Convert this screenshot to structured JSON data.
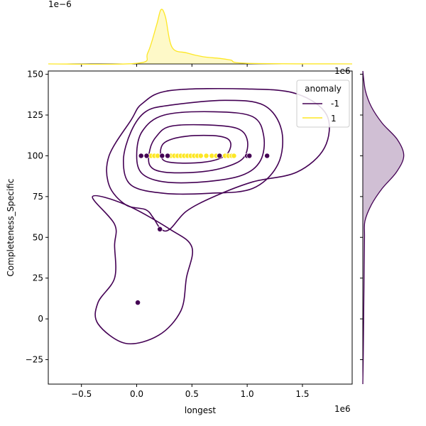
{
  "chart_data": {
    "type": "scatter",
    "subtype": "jointplot-kde",
    "xlabel": "longest",
    "ylabel": "Completeness_Specific",
    "x_offset_text": "1e6",
    "y_offset_text": "1e6",
    "top_offset_text": "1e−6",
    "xlim": [
      -0.8,
      1.95
    ],
    "ylim": [
      -40,
      152
    ],
    "xticks": [
      -0.5,
      0.0,
      0.5,
      1.0,
      1.5
    ],
    "xtick_labels": [
      "−0.5",
      "0.0",
      "0.5",
      "1.0",
      "1.5"
    ],
    "yticks": [
      -25,
      0,
      25,
      50,
      75,
      100,
      125,
      150
    ],
    "ytick_labels": [
      "−25",
      "0",
      "25",
      "50",
      "75",
      "100",
      "125",
      "150"
    ],
    "x_units_multiplier": 1000000,
    "grid": false,
    "legend": {
      "title": "anomaly",
      "placement": "top-right",
      "entries": [
        {
          "label": "-1",
          "color": "#440154"
        },
        {
          "label": "1",
          "color": "#fde725"
        }
      ]
    },
    "series": [
      {
        "name": "-1",
        "color": "#440154",
        "points": [
          {
            "x": 0.04,
            "y": 100
          },
          {
            "x": 0.09,
            "y": 100
          },
          {
            "x": 0.23,
            "y": 100
          },
          {
            "x": 0.28,
            "y": 100
          },
          {
            "x": 0.75,
            "y": 100
          },
          {
            "x": 1.0,
            "y": 100
          },
          {
            "x": 1.02,
            "y": 100
          },
          {
            "x": 1.18,
            "y": 100
          },
          {
            "x": 0.21,
            "y": 55
          },
          {
            "x": 0.01,
            "y": 10
          }
        ]
      },
      {
        "name": "1",
        "color": "#fde725",
        "points": [
          {
            "x": 0.13,
            "y": 100
          },
          {
            "x": 0.16,
            "y": 100
          },
          {
            "x": 0.19,
            "y": 100
          },
          {
            "x": 0.31,
            "y": 100
          },
          {
            "x": 0.34,
            "y": 100
          },
          {
            "x": 0.37,
            "y": 100
          },
          {
            "x": 0.4,
            "y": 100
          },
          {
            "x": 0.43,
            "y": 100
          },
          {
            "x": 0.46,
            "y": 100
          },
          {
            "x": 0.49,
            "y": 100
          },
          {
            "x": 0.52,
            "y": 100
          },
          {
            "x": 0.55,
            "y": 100
          },
          {
            "x": 0.58,
            "y": 100
          },
          {
            "x": 0.63,
            "y": 100
          },
          {
            "x": 0.68,
            "y": 100
          },
          {
            "x": 0.72,
            "y": 100
          },
          {
            "x": 0.8,
            "y": 100
          },
          {
            "x": 0.83,
            "y": 100
          },
          {
            "x": 0.86,
            "y": 100
          },
          {
            "x": 0.88,
            "y": 100
          }
        ]
      }
    ],
    "kde_contours_purple": [
      [
        [
          0.45,
          112
        ],
        [
          0.75,
          112
        ],
        [
          0.85,
          108
        ],
        [
          0.8,
          100
        ],
        [
          0.6,
          96
        ],
        [
          0.3,
          96
        ],
        [
          0.22,
          100
        ],
        [
          0.25,
          108
        ]
      ],
      [
        [
          0.3,
          118
        ],
        [
          0.6,
          119
        ],
        [
          0.9,
          117
        ],
        [
          1.0,
          110
        ],
        [
          0.97,
          99
        ],
        [
          0.8,
          93
        ],
        [
          0.55,
          90
        ],
        [
          0.25,
          90
        ],
        [
          0.12,
          94
        ],
        [
          0.12,
          104
        ],
        [
          0.18,
          112
        ]
      ],
      [
        [
          0.25,
          125
        ],
        [
          0.7,
          127
        ],
        [
          1.05,
          124
        ],
        [
          1.15,
          112
        ],
        [
          1.12,
          97
        ],
        [
          0.95,
          88
        ],
        [
          0.6,
          84
        ],
        [
          0.25,
          84
        ],
        [
          0.05,
          89
        ],
        [
          0.0,
          100
        ],
        [
          0.05,
          115
        ]
      ],
      [
        [
          0.3,
          131
        ],
        [
          0.8,
          134
        ],
        [
          1.15,
          131
        ],
        [
          1.31,
          116
        ],
        [
          1.28,
          95
        ],
        [
          1.05,
          80
        ],
        [
          0.65,
          77
        ],
        [
          0.25,
          77
        ],
        [
          -0.05,
          82
        ],
        [
          -0.12,
          97
        ],
        [
          -0.05,
          115
        ],
        [
          0.08,
          127
        ]
      ],
      [
        [
          0.3,
          140
        ],
        [
          1.0,
          141
        ],
        [
          1.45,
          138
        ],
        [
          1.72,
          125
        ],
        [
          1.7,
          105
        ],
        [
          1.45,
          90
        ],
        [
          1.05,
          84
        ],
        [
          0.7,
          75
        ],
        [
          0.45,
          66
        ],
        [
          0.3,
          55
        ],
        [
          0.22,
          55
        ],
        [
          0.15,
          62
        ],
        [
          0.08,
          67
        ],
        [
          -0.1,
          70
        ],
        [
          -0.25,
          82
        ],
        [
          -0.25,
          100
        ],
        [
          -0.05,
          122
        ],
        [
          0.05,
          132
        ]
      ]
    ],
    "kde_outer_lobe": [
      [
        0.3,
        55
      ],
      [
        0.5,
        44
      ],
      [
        0.45,
        25
      ],
      [
        0.4,
        5
      ],
      [
        0.2,
        -10
      ],
      [
        -0.1,
        -15
      ],
      [
        -0.35,
        -3
      ],
      [
        -0.35,
        10
      ],
      [
        -0.2,
        25
      ],
      [
        -0.2,
        45
      ],
      [
        -0.2,
        58
      ],
      [
        -0.4,
        75
      ],
      [
        -0.1,
        70
      ]
    ],
    "marginal_x_kde_yellow": [
      {
        "x": -0.8,
        "y": 0.0
      },
      {
        "x": 0.0,
        "y": 0.01
      },
      {
        "x": 0.1,
        "y": 0.2
      },
      {
        "x": 0.18,
        "y": 0.7
      },
      {
        "x": 0.22,
        "y": 0.98
      },
      {
        "x": 0.26,
        "y": 0.85
      },
      {
        "x": 0.32,
        "y": 0.3
      },
      {
        "x": 0.45,
        "y": 0.2
      },
      {
        "x": 0.6,
        "y": 0.13
      },
      {
        "x": 0.75,
        "y": 0.1
      },
      {
        "x": 0.85,
        "y": 0.07
      },
      {
        "x": 1.0,
        "y": 0.01
      },
      {
        "x": 1.95,
        "y": 0.0
      }
    ],
    "marginal_y_kde_purple": [
      {
        "y": -40,
        "d": 0.0
      },
      {
        "y": -25,
        "d": 0.01
      },
      {
        "y": 0,
        "d": 0.02
      },
      {
        "y": 25,
        "d": 0.03
      },
      {
        "y": 50,
        "d": 0.04
      },
      {
        "y": 60,
        "d": 0.05
      },
      {
        "y": 70,
        "d": 0.2
      },
      {
        "y": 80,
        "d": 0.45
      },
      {
        "y": 90,
        "d": 0.78
      },
      {
        "y": 100,
        "d": 0.95
      },
      {
        "y": 110,
        "d": 0.8
      },
      {
        "y": 120,
        "d": 0.45
      },
      {
        "y": 130,
        "d": 0.2
      },
      {
        "y": 140,
        "d": 0.06
      },
      {
        "y": 152,
        "d": 0.0
      }
    ]
  }
}
